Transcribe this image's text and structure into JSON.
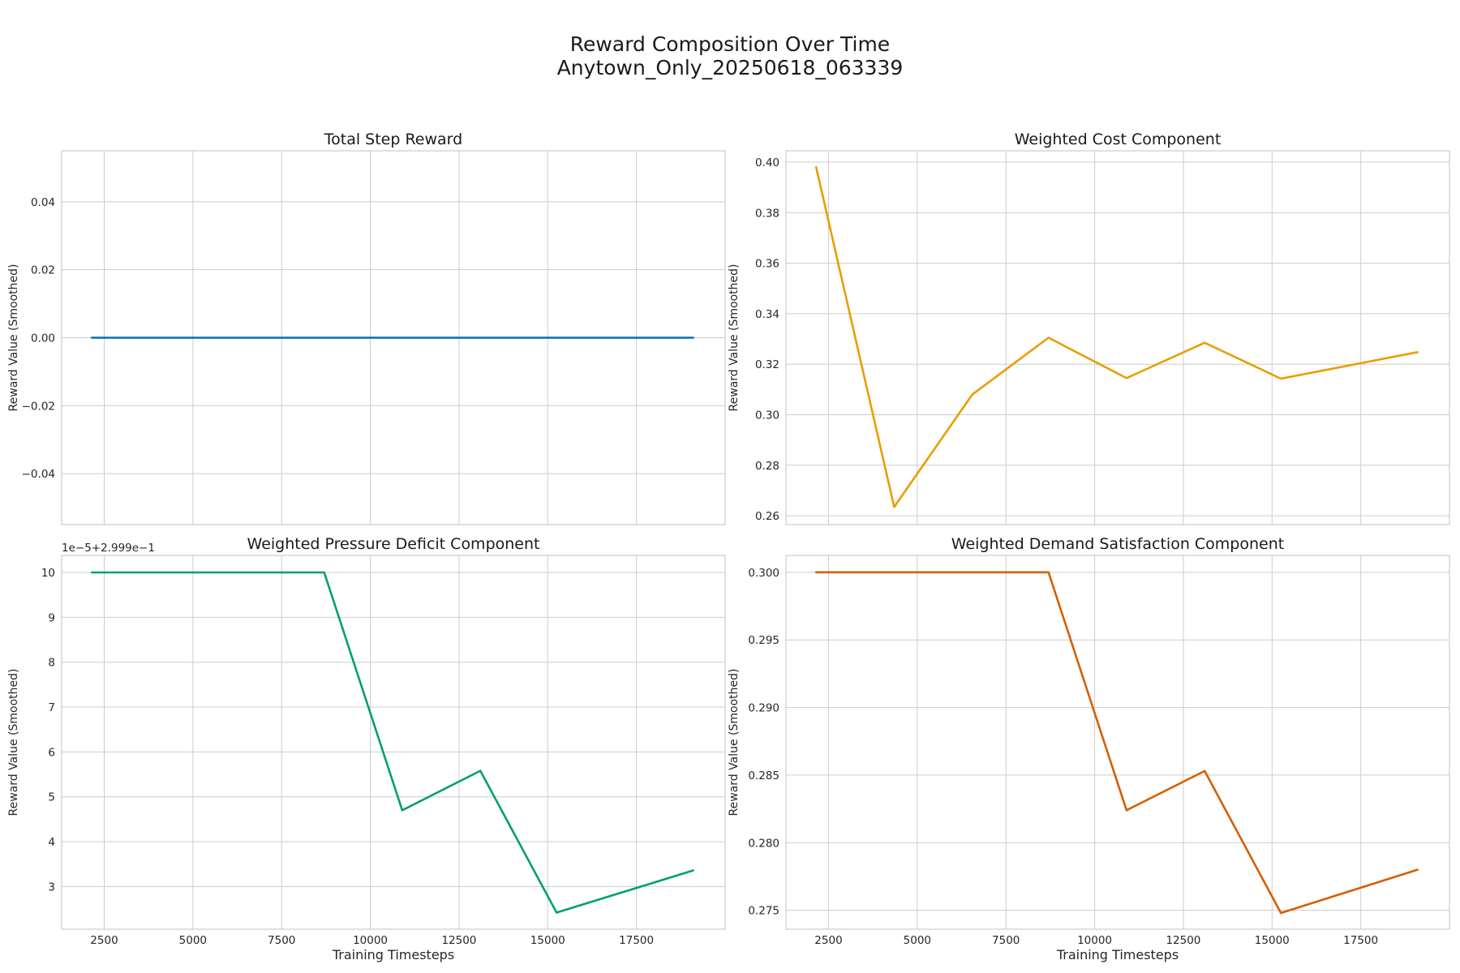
{
  "figure": {
    "title_line1": "Reward Composition Over Time",
    "title_line2": "Anytown_Only_20250618_063339"
  },
  "chart_data": [
    {
      "type": "line",
      "title": "Total Step Reward",
      "xlabel": "",
      "ylabel": "Reward Value (Smoothed)",
      "xlim": [
        1300,
        20000
      ],
      "ylim": [
        -0.055,
        0.055
      ],
      "xticks": [
        2500,
        5000,
        7500,
        10000,
        12500,
        15000,
        17500
      ],
      "xtick_labels": [
        "",
        "",
        "",
        "",
        "",
        "",
        ""
      ],
      "yticks": [
        -0.04,
        -0.02,
        0.0,
        0.02,
        0.04
      ],
      "ytick_labels": [
        "−0.04",
        "−0.02",
        "0.00",
        "0.02",
        "0.04"
      ],
      "offset_text": "",
      "grid": true,
      "color": "#0072b2",
      "x": [
        2150,
        4350,
        6550,
        8700,
        10900,
        13100,
        15250,
        19100
      ],
      "y": [
        0,
        0,
        0,
        0,
        0,
        0,
        0,
        0
      ]
    },
    {
      "type": "line",
      "title": "Weighted Cost Component",
      "xlabel": "",
      "ylabel": "Reward Value (Smoothed)",
      "xlim": [
        1300,
        20000
      ],
      "ylim": [
        0.2565,
        0.4045
      ],
      "xticks": [
        2500,
        5000,
        7500,
        10000,
        12500,
        15000,
        17500
      ],
      "xtick_labels": [
        "",
        "",
        "",
        "",
        "",
        "",
        ""
      ],
      "yticks": [
        0.26,
        0.28,
        0.3,
        0.32,
        0.34,
        0.36,
        0.38,
        0.4
      ],
      "ytick_labels": [
        "0.26",
        "0.28",
        "0.30",
        "0.32",
        "0.34",
        "0.36",
        "0.38",
        "0.40"
      ],
      "offset_text": "",
      "grid": true,
      "color": "#e69f00",
      "x": [
        2150,
        4350,
        6550,
        8700,
        10900,
        13100,
        15250,
        19100
      ],
      "y": [
        0.398,
        0.2635,
        0.308,
        0.3305,
        0.3145,
        0.3285,
        0.3143,
        0.3248
      ]
    },
    {
      "type": "line",
      "title": "Weighted Pressure Deficit Component",
      "xlabel": "Training Timesteps",
      "ylabel": "Reward Value (Smoothed)",
      "xlim": [
        1300,
        20000
      ],
      "ylim": [
        2.05,
        10.38
      ],
      "xticks": [
        2500,
        5000,
        7500,
        10000,
        12500,
        15000,
        17500
      ],
      "xtick_labels": [
        "2500",
        "5000",
        "7500",
        "10000",
        "12500",
        "15000",
        "17500"
      ],
      "yticks": [
        3,
        4,
        5,
        6,
        7,
        8,
        9,
        10
      ],
      "ytick_labels": [
        "3",
        "4",
        "5",
        "6",
        "7",
        "8",
        "9",
        "10"
      ],
      "offset_text": "1e−5+2.999e−1",
      "grid": true,
      "color": "#009e73",
      "x": [
        2150,
        4350,
        6550,
        8700,
        10900,
        13100,
        15250,
        19100
      ],
      "y": [
        10,
        10,
        10,
        10,
        4.7,
        5.58,
        2.42,
        3.36
      ]
    },
    {
      "type": "line",
      "title": "Weighted Demand Satisfaction Component",
      "xlabel": "Training Timesteps",
      "ylabel": "Reward Value (Smoothed)",
      "xlim": [
        1300,
        20000
      ],
      "ylim": [
        0.2736,
        0.30125
      ],
      "xticks": [
        2500,
        5000,
        7500,
        10000,
        12500,
        15000,
        17500
      ],
      "xtick_labels": [
        "2500",
        "5000",
        "7500",
        "10000",
        "12500",
        "15000",
        "17500"
      ],
      "yticks": [
        0.275,
        0.28,
        0.285,
        0.29,
        0.295,
        0.3
      ],
      "ytick_labels": [
        "0.275",
        "0.280",
        "0.285",
        "0.290",
        "0.295",
        "0.300"
      ],
      "offset_text": "",
      "grid": true,
      "color": "#d55e00",
      "x": [
        2150,
        4350,
        6550,
        8700,
        10900,
        13100,
        15250,
        19100
      ],
      "y": [
        0.3,
        0.3,
        0.3,
        0.3,
        0.2824,
        0.2853,
        0.2748,
        0.278
      ]
    }
  ]
}
